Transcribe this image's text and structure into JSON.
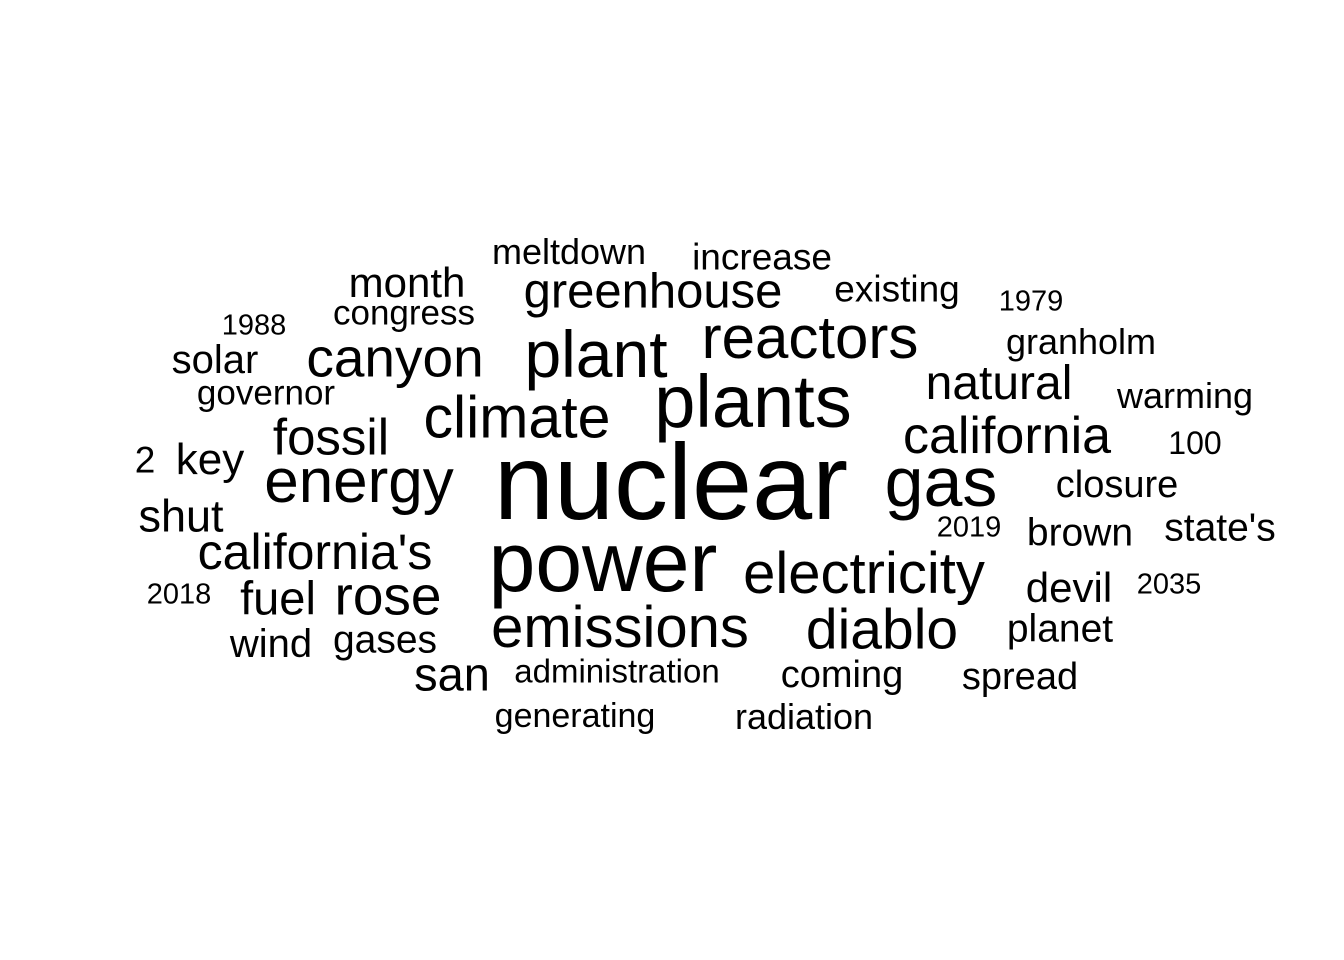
{
  "wordcloud": {
    "text_color": "#000000",
    "background_color": "#ffffff",
    "words": [
      {
        "text": "nuclear",
        "weight": 100
      },
      {
        "text": "power",
        "weight": 78
      },
      {
        "text": "plants",
        "weight": 70
      },
      {
        "text": "gas",
        "weight": 66
      },
      {
        "text": "plant",
        "weight": 62
      },
      {
        "text": "energy",
        "weight": 58
      },
      {
        "text": "reactors",
        "weight": 57
      },
      {
        "text": "climate",
        "weight": 56
      },
      {
        "text": "electricity",
        "weight": 55
      },
      {
        "text": "emissions",
        "weight": 55
      },
      {
        "text": "diablo",
        "weight": 54
      },
      {
        "text": "canyon",
        "weight": 52
      },
      {
        "text": "rose",
        "weight": 52
      },
      {
        "text": "california",
        "weight": 50
      },
      {
        "text": "fossil",
        "weight": 49
      },
      {
        "text": "california's",
        "weight": 48
      },
      {
        "text": "greenhouse",
        "weight": 47
      },
      {
        "text": "natural",
        "weight": 46
      },
      {
        "text": "fuel",
        "weight": 45
      },
      {
        "text": "san",
        "weight": 45
      },
      {
        "text": "shut",
        "weight": 43
      },
      {
        "text": "key",
        "weight": 42
      },
      {
        "text": "month",
        "weight": 40
      },
      {
        "text": "devil",
        "weight": 40
      },
      {
        "text": "solar",
        "weight": 38
      },
      {
        "text": "wind",
        "weight": 38
      },
      {
        "text": "gases",
        "weight": 37
      },
      {
        "text": "brown",
        "weight": 37
      },
      {
        "text": "state's",
        "weight": 37
      },
      {
        "text": "planet",
        "weight": 37
      },
      {
        "text": "closure",
        "weight": 36
      },
      {
        "text": "coming",
        "weight": 36
      },
      {
        "text": "spread",
        "weight": 36
      },
      {
        "text": "existing",
        "weight": 35
      },
      {
        "text": "increase",
        "weight": 35
      },
      {
        "text": "2",
        "weight": 35
      },
      {
        "text": "granholm",
        "weight": 34
      },
      {
        "text": "meltdown",
        "weight": 34
      },
      {
        "text": "warming",
        "weight": 34
      },
      {
        "text": "radiation",
        "weight": 34
      },
      {
        "text": "congress",
        "weight": 33
      },
      {
        "text": "governor",
        "weight": 33
      },
      {
        "text": "generating",
        "weight": 32
      },
      {
        "text": "administration",
        "weight": 31
      },
      {
        "text": "100",
        "weight": 30
      },
      {
        "text": "1979",
        "weight": 28
      },
      {
        "text": "1988",
        "weight": 28
      },
      {
        "text": "2019",
        "weight": 28
      },
      {
        "text": "2018",
        "weight": 28
      },
      {
        "text": "2035",
        "weight": 28
      }
    ]
  }
}
